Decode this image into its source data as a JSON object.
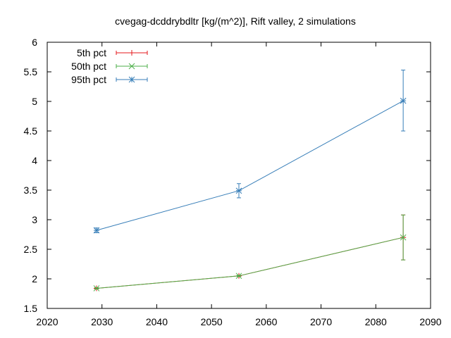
{
  "chart_data": {
    "type": "line",
    "title": "cvegag-dcddrybdltr [kg/(m^2)], Rift valley, 2 simulations",
    "xlabel": "",
    "ylabel": "",
    "xlim": [
      2020,
      2090
    ],
    "ylim": [
      1.5,
      6
    ],
    "xticks": [
      2020,
      2030,
      2040,
      2050,
      2060,
      2070,
      2080,
      2090
    ],
    "yticks": [
      1.5,
      2,
      2.5,
      3,
      3.5,
      4,
      4.5,
      5,
      5.5,
      6
    ],
    "grid": false,
    "legend_position": "top-left",
    "series": [
      {
        "name": "5th pct",
        "color": "#e41a1c",
        "marker": "plus",
        "points": [
          {
            "x": 2029,
            "y": 1.84,
            "err_low": 1.83,
            "err_high": 1.85
          },
          {
            "x": 2055,
            "y": 2.05,
            "err_low": 2.04,
            "err_high": 2.06
          },
          {
            "x": 2085,
            "y": 2.7,
            "err_low": 2.32,
            "err_high": 3.08
          }
        ]
      },
      {
        "name": "50th pct",
        "color": "#4daf4a",
        "marker": "cross",
        "points": [
          {
            "x": 2029,
            "y": 1.84,
            "err_low": 1.83,
            "err_high": 1.85
          },
          {
            "x": 2055,
            "y": 2.05,
            "err_low": 2.04,
            "err_high": 2.06
          },
          {
            "x": 2085,
            "y": 2.7,
            "err_low": 2.32,
            "err_high": 3.08
          }
        ]
      },
      {
        "name": "95th pct",
        "color": "#377eb8",
        "marker": "star",
        "points": [
          {
            "x": 2029,
            "y": 2.82,
            "err_low": 2.78,
            "err_high": 2.86
          },
          {
            "x": 2055,
            "y": 3.49,
            "err_low": 3.37,
            "err_high": 3.61
          },
          {
            "x": 2085,
            "y": 5.01,
            "err_low": 4.5,
            "err_high": 5.53
          }
        ]
      }
    ]
  }
}
